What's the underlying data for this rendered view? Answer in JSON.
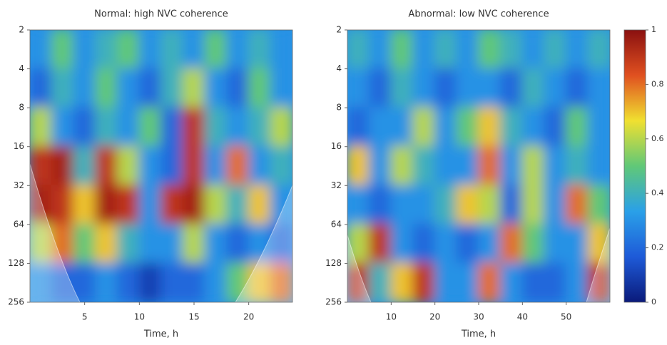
{
  "chart_data": [
    {
      "type": "heatmap",
      "title": "Normal: high NVC coherence",
      "xlabel": "Time, h",
      "xlim": [
        0,
        24
      ],
      "xticks": [
        5,
        10,
        15,
        20
      ],
      "ylim": [
        2,
        256
      ],
      "yticks": [
        2,
        4,
        8,
        16,
        32,
        64,
        128,
        256
      ],
      "ylog": true,
      "yinverted": true,
      "z": [
        [
          0.3,
          0.5,
          0.3,
          0.4,
          0.5,
          0.3,
          0.4,
          0.3,
          0.5,
          0.3,
          0.4,
          0.3
        ],
        [
          0.2,
          0.4,
          0.3,
          0.5,
          0.3,
          0.2,
          0.4,
          0.6,
          0.3,
          0.2,
          0.5,
          0.3
        ],
        [
          0.6,
          0.3,
          0.2,
          0.4,
          0.3,
          0.5,
          0.2,
          0.9,
          0.4,
          0.3,
          0.4,
          0.6
        ],
        [
          0.9,
          0.95,
          0.4,
          0.9,
          0.6,
          0.3,
          0.2,
          0.9,
          0.3,
          0.8,
          0.3,
          0.4
        ],
        [
          0.95,
          0.9,
          0.7,
          0.95,
          0.9,
          0.3,
          0.9,
          0.95,
          0.6,
          0.4,
          0.7,
          0.3
        ],
        [
          0.6,
          0.8,
          0.5,
          0.7,
          0.4,
          0.3,
          0.3,
          0.6,
          0.3,
          0.2,
          0.3,
          0.2
        ],
        [
          0.3,
          0.2,
          0.2,
          0.3,
          0.2,
          0.1,
          0.2,
          0.2,
          0.3,
          0.5,
          0.7,
          0.8
        ]
      ]
    },
    {
      "type": "heatmap",
      "title": "Abnormal: low NVC coherence",
      "xlabel": "Time, h",
      "xlim": [
        0,
        60
      ],
      "xticks": [
        10,
        20,
        30,
        40,
        50
      ],
      "ylim": [
        2,
        256
      ],
      "yticks": [
        2,
        4,
        8,
        16,
        32,
        64,
        128,
        256
      ],
      "ylog": true,
      "yinverted": true,
      "z": [
        [
          0.4,
          0.3,
          0.5,
          0.3,
          0.4,
          0.3,
          0.5,
          0.4,
          0.3,
          0.4,
          0.3,
          0.4
        ],
        [
          0.3,
          0.2,
          0.4,
          0.3,
          0.2,
          0.3,
          0.3,
          0.2,
          0.4,
          0.3,
          0.2,
          0.3
        ],
        [
          0.2,
          0.3,
          0.3,
          0.6,
          0.3,
          0.5,
          0.7,
          0.4,
          0.3,
          0.2,
          0.5,
          0.3
        ],
        [
          0.7,
          0.3,
          0.6,
          0.4,
          0.3,
          0.3,
          0.8,
          0.3,
          0.6,
          0.3,
          0.4,
          0.3
        ],
        [
          0.3,
          0.2,
          0.3,
          0.3,
          0.4,
          0.7,
          0.6,
          0.2,
          0.6,
          0.3,
          0.8,
          0.5
        ],
        [
          0.6,
          0.9,
          0.3,
          0.2,
          0.3,
          0.2,
          0.3,
          0.8,
          0.5,
          0.3,
          0.3,
          0.7
        ],
        [
          0.9,
          0.4,
          0.7,
          0.9,
          0.3,
          0.3,
          0.8,
          0.3,
          0.2,
          0.2,
          0.3,
          0.9
        ]
      ]
    }
  ],
  "colorbar": {
    "lim": [
      0,
      1
    ],
    "ticks": [
      0,
      0.2,
      0.4,
      0.6,
      0.8,
      1
    ],
    "colormap": [
      "#0a1a7a",
      "#1e5ad8",
      "#2aa0e8",
      "#60c878",
      "#f0e030",
      "#e05020",
      "#8a1010"
    ]
  }
}
